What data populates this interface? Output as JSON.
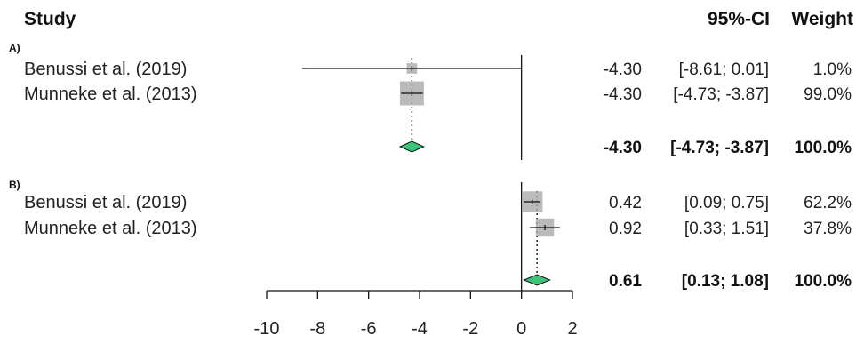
{
  "header": {
    "study": "Study",
    "ci": "95%-CI",
    "weight": "Weight"
  },
  "colors": {
    "diamond": "#3cc47a",
    "square": "#aaaaaa",
    "line": "#111111"
  },
  "chart_data": {
    "type": "forest",
    "x_ticks": [
      "-10",
      "-8",
      "-6",
      "-4",
      "-2",
      "0",
      "2"
    ],
    "xlim": [
      -10,
      2
    ],
    "reference_line": 0,
    "groups": [
      {
        "label": "A)",
        "studies": [
          {
            "name": "Benussi et al. (2019)",
            "est": -4.3,
            "lo": -8.61,
            "hi": 0.01,
            "est_text": "-4.30",
            "ci_text": "[-8.61;  0.01]",
            "weight": 1.0,
            "weight_text": "1.0%"
          },
          {
            "name": "Munneke et al. (2013)",
            "est": -4.3,
            "lo": -4.73,
            "hi": -3.87,
            "est_text": "-4.30",
            "ci_text": "[-4.73; -3.87]",
            "weight": 99.0,
            "weight_text": "99.0%"
          }
        ],
        "pooled": {
          "est": -4.3,
          "lo": -4.73,
          "hi": -3.87,
          "est_text": "-4.30",
          "ci_text": "[-4.73; -3.87]",
          "weight_text": "100.0%"
        }
      },
      {
        "label": "B)",
        "studies": [
          {
            "name": "Benussi et al. (2019)",
            "est": 0.42,
            "lo": 0.09,
            "hi": 0.75,
            "est_text": "0.42",
            "ci_text": "[0.09;  0.75]",
            "weight": 62.2,
            "weight_text": "62.2%"
          },
          {
            "name": "Munneke et al. (2013)",
            "est": 0.92,
            "lo": 0.33,
            "hi": 1.51,
            "est_text": "0.92",
            "ci_text": "[0.33;  1.51]",
            "weight": 37.8,
            "weight_text": "37.8%"
          }
        ],
        "pooled": {
          "est": 0.61,
          "lo": 0.13,
          "hi": 1.08,
          "est_text": "0.61",
          "ci_text": "[0.13; 1.08]",
          "weight_text": "100.0%"
        }
      }
    ]
  }
}
